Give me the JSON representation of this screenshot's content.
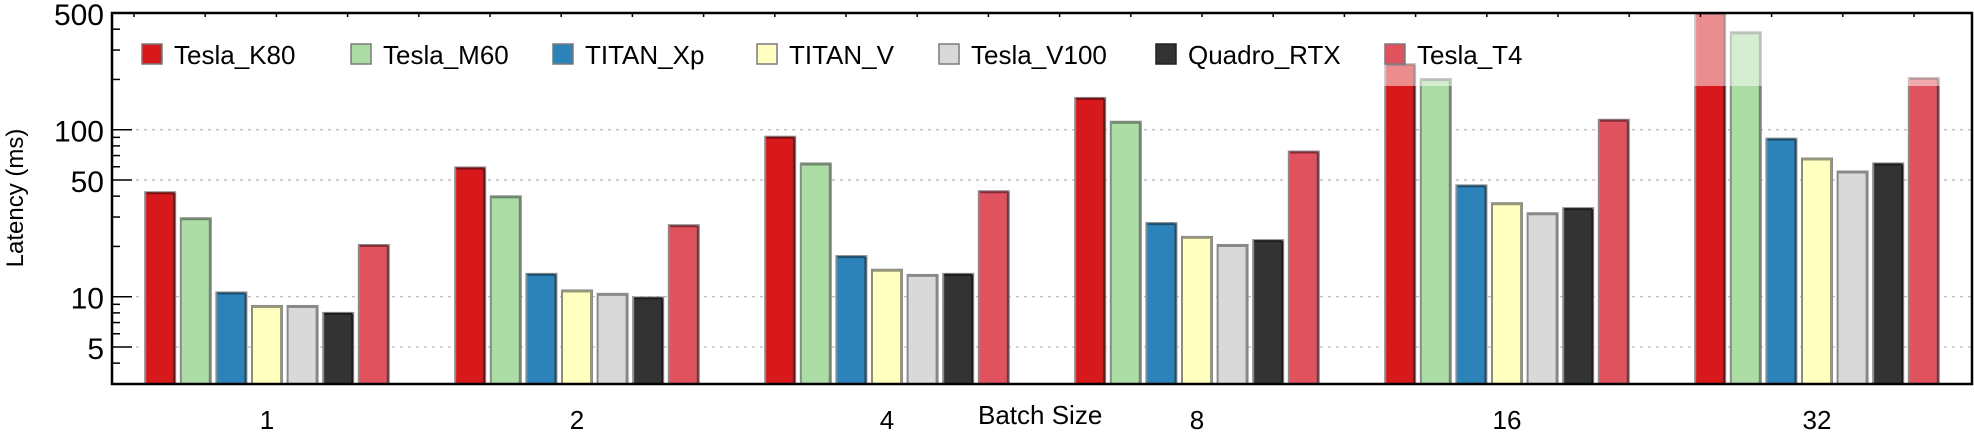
{
  "chart_data": {
    "type": "bar",
    "title": "",
    "xlabel": "Batch Size",
    "ylabel": "Latency (ms)",
    "yscale": "log",
    "ylim": [
      3,
      500
    ],
    "yticks": [
      5,
      10,
      50,
      100,
      500
    ],
    "ytick_labels": [
      "5",
      "10",
      "50",
      "100",
      "500"
    ],
    "grid": "horizontal dotted at major y ticks",
    "legend_position": "top, single row",
    "categories": [
      "1",
      "2",
      "4",
      "8",
      "16",
      "32"
    ],
    "series": [
      {
        "name": "Tesla_K80",
        "color": "#d7191c",
        "edge": "#7a0f12",
        "values": [
          42.2,
          59.4,
          90.8,
          155,
          247,
          520
        ]
      },
      {
        "name": "Tesla_M60",
        "color": "#abdda4",
        "edge": "#6b8968",
        "values": [
          29.5,
          39.9,
          62.8,
          111.6,
          201,
          383
        ]
      },
      {
        "name": "TITAN_Xp",
        "color": "#2b83ba",
        "edge": "#1a4f70",
        "values": [
          10.6,
          13.7,
          17.5,
          27.6,
          46.4,
          88.4
        ]
      },
      {
        "name": "TITAN_V",
        "color": "#ffffbf",
        "edge": "#999978",
        "values": [
          8.8,
          10.9,
          14.5,
          22.8,
          36.3,
          67.2
        ]
      },
      {
        "name": "Tesla_V100",
        "color": "#d9d9d9",
        "edge": "#888888",
        "values": [
          8.8,
          10.4,
          13.5,
          20.4,
          31.6,
          56.2
        ]
      },
      {
        "name": "Quadro_RTX",
        "color": "#333333",
        "edge": "#1c1c1c",
        "values": [
          8.0,
          9.9,
          13.7,
          21.8,
          33.9,
          62.8
        ]
      },
      {
        "name": "Tesla_T4",
        "color": "#e0525e",
        "edge": "#862c34",
        "values": [
          20.4,
          26.8,
          42.8,
          74.0,
          114.7,
          204
        ]
      }
    ]
  }
}
